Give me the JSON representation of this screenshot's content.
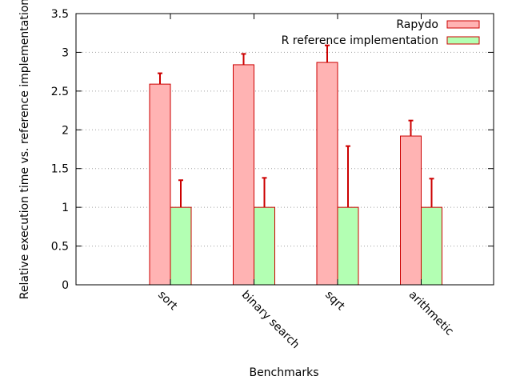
{
  "chart_data": {
    "type": "bar",
    "title": "",
    "xlabel": "Benchmarks",
    "ylabel": "Relative execution time vs. reference implementation",
    "ylim": [
      0,
      3.5
    ],
    "yticks": [
      "0",
      "0.5",
      "1",
      "1.5",
      "2",
      "2.5",
      "3",
      "3.5"
    ],
    "grid": "horizontal dotted",
    "legend_position": "top-right",
    "categories": [
      "sort",
      "binary search",
      "sqrt",
      "arithmetic"
    ],
    "series": [
      {
        "name": "Rapydo",
        "values": [
          2.59,
          2.84,
          2.87,
          1.92
        ],
        "error_upper": [
          2.73,
          2.98,
          3.09,
          2.12
        ],
        "fill": "#ffb3b3",
        "stroke": "#cc0000"
      },
      {
        "name": "R reference implementation",
        "values": [
          1.0,
          1.0,
          1.0,
          1.0
        ],
        "error_upper": [
          1.35,
          1.38,
          1.79,
          1.37
        ],
        "fill": "#b3ffb3",
        "stroke": "#cc0000"
      }
    ],
    "error_bar_color": "#cc0000"
  }
}
